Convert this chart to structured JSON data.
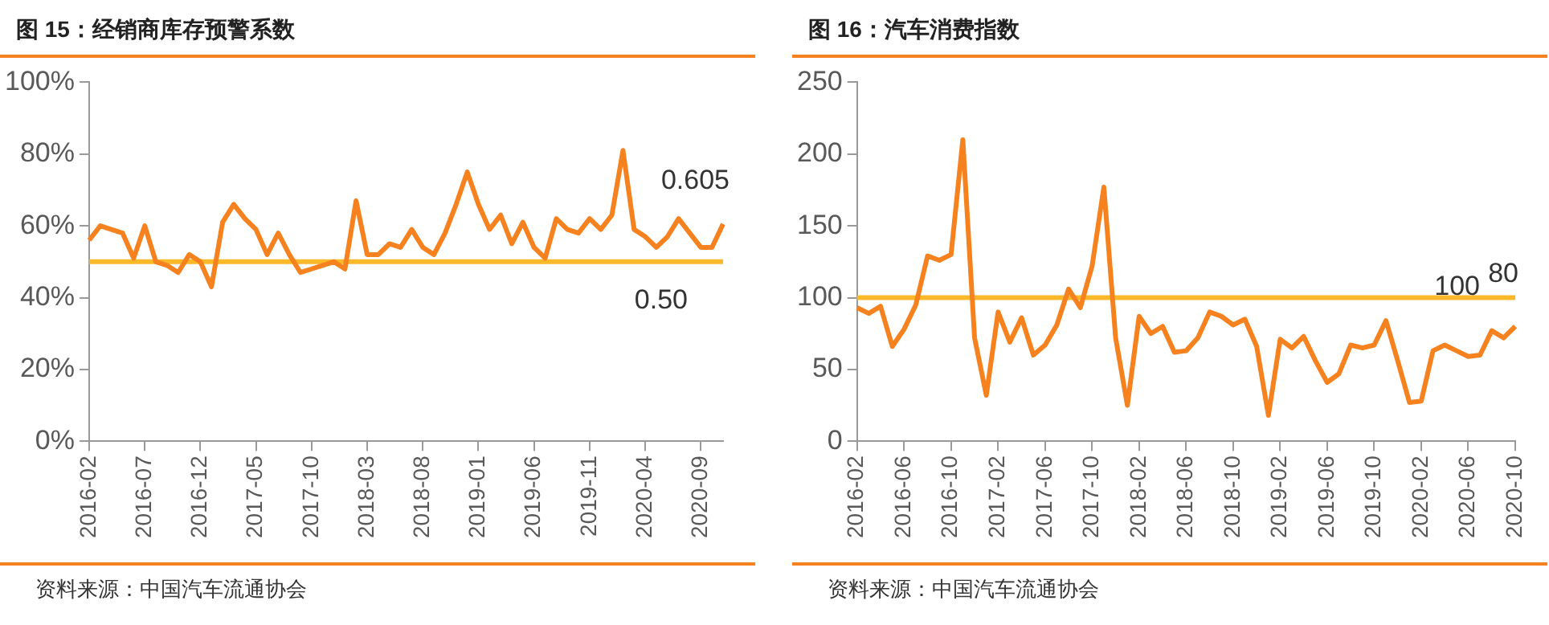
{
  "chart_data": [
    {
      "type": "line",
      "title": "图 15：经销商库存预警系数",
      "categories": [
        "2016-02",
        null,
        null,
        null,
        null,
        "2016-07",
        null,
        null,
        null,
        null,
        "2016-12",
        null,
        null,
        null,
        null,
        "2017-05",
        null,
        null,
        null,
        null,
        "2017-10",
        null,
        null,
        null,
        null,
        "2018-03",
        null,
        null,
        null,
        null,
        "2018-08",
        null,
        null,
        null,
        null,
        "2019-01",
        null,
        null,
        null,
        null,
        "2019-06",
        null,
        null,
        null,
        null,
        "2019-11",
        null,
        null,
        null,
        null,
        "2020-04",
        null,
        null,
        null,
        null,
        "2020-09",
        null,
        null
      ],
      "series": [
        {
          "color": "#f5821f",
          "values": [
            0.56,
            0.6,
            0.59,
            0.58,
            0.51,
            0.6,
            0.5,
            0.49,
            0.47,
            0.52,
            0.5,
            0.43,
            0.61,
            0.66,
            0.62,
            0.59,
            0.52,
            0.58,
            0.52,
            0.47,
            0.48,
            0.49,
            0.5,
            0.48,
            0.67,
            0.52,
            0.52,
            0.55,
            0.54,
            0.59,
            0.54,
            0.52,
            0.58,
            0.66,
            0.75,
            0.66,
            0.59,
            0.63,
            0.55,
            0.61,
            0.54,
            0.51,
            0.62,
            0.59,
            0.58,
            0.62,
            0.59,
            0.63,
            0.81,
            0.59,
            0.57,
            0.54,
            0.57,
            0.62,
            0.58,
            0.54,
            0.54,
            0.605
          ]
        }
      ],
      "ylim": [
        0,
        1
      ],
      "yticks": [
        {
          "value": 0,
          "label": "0%"
        },
        {
          "value": 0.2,
          "label": "20%"
        },
        {
          "value": 0.4,
          "label": "40%"
        },
        {
          "value": 0.6,
          "label": "60%"
        },
        {
          "value": 0.8,
          "label": "80%"
        },
        {
          "value": 1,
          "label": "100%"
        }
      ],
      "ref_lines": [
        {
          "axis": "y",
          "value": 0.5,
          "label": "0.50",
          "color": "#fbb829"
        }
      ],
      "annotations": [
        "0.605",
        "资料来源：中国汽车流通协会"
      ],
      "grid": false,
      "legend": false
    },
    {
      "type": "line",
      "title": "图 16：汽车消费指数",
      "categories": [
        "2016-02",
        null,
        null,
        null,
        "2016-06",
        null,
        null,
        null,
        "2016-10",
        null,
        null,
        null,
        "2017-02",
        null,
        null,
        null,
        "2017-06",
        null,
        null,
        null,
        "2017-10",
        null,
        null,
        null,
        "2018-02",
        null,
        null,
        null,
        "2018-06",
        null,
        null,
        null,
        "2018-10",
        null,
        null,
        null,
        "2019-02",
        null,
        null,
        null,
        "2019-06",
        null,
        null,
        null,
        "2019-10",
        null,
        null,
        null,
        "2020-02",
        null,
        null,
        null,
        "2020-06",
        null,
        null,
        null,
        "2020-10"
      ],
      "series": [
        {
          "color": "#f5821f",
          "values": [
            93,
            89,
            94,
            66,
            78,
            95,
            129,
            126,
            130,
            210,
            72,
            32,
            90,
            69,
            86,
            60,
            67,
            81,
            106,
            93,
            122,
            177,
            72,
            25,
            87,
            75,
            80,
            62,
            63,
            72,
            90,
            87,
            81,
            85,
            66,
            18,
            71,
            65,
            73,
            56,
            41,
            47,
            67,
            65,
            67,
            84,
            56,
            27,
            28,
            63,
            67,
            63,
            59,
            60,
            77,
            72,
            80
          ]
        }
      ],
      "ylim": [
        0,
        250
      ],
      "yticks": [
        0,
        50,
        100,
        150,
        200,
        250
      ],
      "ref_lines": [
        {
          "axis": "y",
          "value": 100,
          "label": "100",
          "color": "#fbb829"
        }
      ],
      "annotations": [
        {
          "text": "80",
          "x": "2020-10",
          "y": 80
        },
        "资料来源：中国汽车流通协会"
      ],
      "grid": false,
      "legend": false
    }
  ]
}
